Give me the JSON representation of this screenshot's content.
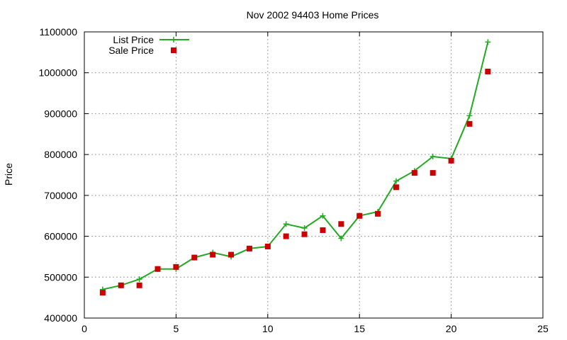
{
  "chart_data": {
    "type": "line",
    "title": "Nov 2002 94403 Home Prices",
    "xlabel": "",
    "ylabel": "Price",
    "xlim": [
      0,
      25
    ],
    "ylim": [
      400000,
      1100000
    ],
    "xticks": [
      0,
      5,
      10,
      15,
      20,
      25
    ],
    "yticks": [
      400000,
      500000,
      600000,
      700000,
      800000,
      900000,
      1000000,
      1100000
    ],
    "xtick_labels": [
      "0",
      "5",
      "10",
      "15",
      "20",
      "25"
    ],
    "ytick_labels": [
      "400000",
      "500000",
      "600000",
      "700000",
      "800000",
      "900000",
      "1000000",
      "1100000"
    ],
    "grid": true,
    "legend_position": "top-left",
    "series": [
      {
        "name": "List Price",
        "style": "line-with-plus-markers",
        "color": "#22aa22",
        "x": [
          1,
          2,
          3,
          4,
          5,
          6,
          7,
          8,
          9,
          10,
          11,
          12,
          13,
          14,
          15,
          16,
          17,
          18,
          19,
          20,
          21,
          22
        ],
        "values": [
          470000,
          480000,
          495000,
          520000,
          520000,
          548000,
          560000,
          550000,
          570000,
          575000,
          630000,
          620000,
          650000,
          595000,
          650000,
          660000,
          735000,
          760000,
          795000,
          790000,
          895000,
          1075000
        ]
      },
      {
        "name": "Sale Price",
        "style": "square-markers",
        "color": "#cc0000",
        "x": [
          1,
          2,
          3,
          4,
          5,
          6,
          7,
          8,
          9,
          10,
          11,
          12,
          13,
          14,
          15,
          16,
          17,
          18,
          19,
          20,
          21,
          22
        ],
        "values": [
          462000,
          480000,
          480000,
          520000,
          525000,
          548000,
          555000,
          555000,
          570000,
          575000,
          600000,
          605000,
          615000,
          630000,
          650000,
          655000,
          720000,
          755000,
          755000,
          785000,
          875000,
          1003000
        ]
      }
    ]
  }
}
